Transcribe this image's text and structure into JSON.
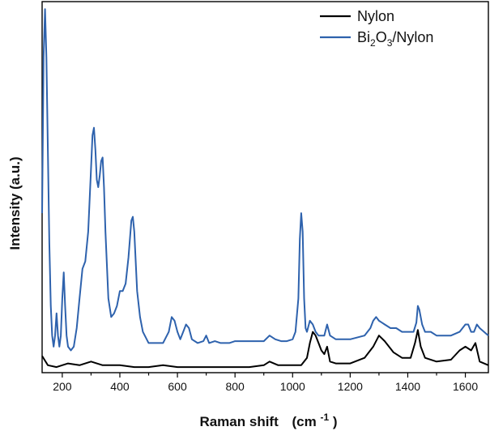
{
  "chart_data": {
    "type": "line",
    "xlabel": "Raman shift",
    "xlabel_unit": "(cm",
    "xlabel_unit_sup": "-1",
    "xlabel_unit_close": ")",
    "ylabel": "Intensity (a.u.)",
    "xlim": [
      130,
      1680
    ],
    "ylim": [
      0,
      1
    ],
    "y_ticks_labeled": false,
    "grid": false,
    "legend_position": "top-right",
    "x_ticks": [
      {
        "value": 200,
        "label": "200"
      },
      {
        "value": 400,
        "label": "400"
      },
      {
        "value": 600,
        "label": "600"
      },
      {
        "value": 800,
        "label": "800"
      },
      {
        "value": 1000,
        "label": "1000"
      },
      {
        "value": 1200,
        "label": "1200"
      },
      {
        "value": 1400,
        "label": "1400"
      },
      {
        "value": 1600,
        "label": "1600"
      }
    ],
    "series": [
      {
        "name": "Nylon",
        "legend": {
          "main": "Nylon"
        },
        "color": "#000000",
        "x": [
          130,
          150,
          180,
          220,
          260,
          300,
          340,
          400,
          450,
          500,
          550,
          600,
          650,
          700,
          750,
          800,
          850,
          900,
          920,
          950,
          1000,
          1030,
          1050,
          1060,
          1070,
          1080,
          1090,
          1100,
          1110,
          1120,
          1130,
          1150,
          1200,
          1250,
          1280,
          1300,
          1320,
          1350,
          1380,
          1410,
          1425,
          1435,
          1445,
          1460,
          1500,
          1550,
          1580,
          1600,
          1620,
          1635,
          1650,
          1680
        ],
        "y": [
          0.045,
          0.02,
          0.015,
          0.025,
          0.02,
          0.03,
          0.02,
          0.02,
          0.015,
          0.015,
          0.02,
          0.015,
          0.015,
          0.015,
          0.015,
          0.015,
          0.015,
          0.02,
          0.03,
          0.02,
          0.02,
          0.02,
          0.04,
          0.08,
          0.11,
          0.1,
          0.08,
          0.06,
          0.05,
          0.07,
          0.03,
          0.025,
          0.025,
          0.04,
          0.07,
          0.1,
          0.085,
          0.055,
          0.04,
          0.04,
          0.08,
          0.115,
          0.07,
          0.04,
          0.03,
          0.035,
          0.06,
          0.07,
          0.06,
          0.08,
          0.03,
          0.02
        ]
      },
      {
        "name": "Bi2O3/Nylon",
        "legend": {
          "main": "Bi",
          "sub1": "2",
          "mid": "O",
          "sub2": "3",
          "tail": "/Nylon"
        },
        "color": "#2e62ad",
        "x": [
          130,
          135,
          140,
          145,
          150,
          155,
          160,
          165,
          170,
          175,
          180,
          185,
          190,
          195,
          200,
          205,
          210,
          215,
          220,
          230,
          240,
          250,
          260,
          270,
          280,
          290,
          300,
          305,
          310,
          315,
          320,
          325,
          330,
          335,
          340,
          345,
          350,
          360,
          370,
          380,
          390,
          400,
          410,
          420,
          430,
          440,
          445,
          450,
          460,
          470,
          480,
          500,
          520,
          550,
          570,
          580,
          590,
          600,
          610,
          620,
          630,
          640,
          650,
          670,
          690,
          700,
          710,
          730,
          750,
          780,
          800,
          850,
          900,
          920,
          940,
          960,
          980,
          1000,
          1010,
          1020,
          1025,
          1030,
          1035,
          1040,
          1045,
          1050,
          1060,
          1070,
          1080,
          1090,
          1100,
          1110,
          1120,
          1130,
          1150,
          1200,
          1250,
          1270,
          1280,
          1290,
          1300,
          1310,
          1320,
          1340,
          1360,
          1380,
          1400,
          1420,
          1430,
          1435,
          1440,
          1450,
          1460,
          1480,
          1500,
          1550,
          1580,
          1600,
          1610,
          1620,
          1630,
          1640,
          1650,
          1680
        ],
        "y": [
          0.43,
          0.85,
          0.98,
          0.85,
          0.6,
          0.35,
          0.18,
          0.1,
          0.07,
          0.1,
          0.16,
          0.1,
          0.07,
          0.1,
          0.2,
          0.27,
          0.18,
          0.1,
          0.07,
          0.06,
          0.07,
          0.12,
          0.2,
          0.28,
          0.3,
          0.38,
          0.55,
          0.64,
          0.66,
          0.6,
          0.52,
          0.5,
          0.53,
          0.57,
          0.58,
          0.5,
          0.38,
          0.2,
          0.15,
          0.16,
          0.18,
          0.22,
          0.22,
          0.24,
          0.31,
          0.41,
          0.42,
          0.38,
          0.22,
          0.15,
          0.11,
          0.08,
          0.08,
          0.08,
          0.11,
          0.15,
          0.14,
          0.11,
          0.09,
          0.11,
          0.13,
          0.12,
          0.09,
          0.08,
          0.085,
          0.1,
          0.08,
          0.085,
          0.08,
          0.08,
          0.085,
          0.085,
          0.085,
          0.1,
          0.09,
          0.085,
          0.085,
          0.09,
          0.11,
          0.2,
          0.36,
          0.43,
          0.38,
          0.2,
          0.12,
          0.11,
          0.14,
          0.13,
          0.11,
          0.1,
          0.1,
          0.1,
          0.13,
          0.1,
          0.09,
          0.09,
          0.1,
          0.12,
          0.14,
          0.15,
          0.14,
          0.135,
          0.13,
          0.12,
          0.12,
          0.11,
          0.11,
          0.11,
          0.135,
          0.18,
          0.17,
          0.13,
          0.11,
          0.11,
          0.1,
          0.1,
          0.11,
          0.13,
          0.13,
          0.11,
          0.11,
          0.13,
          0.12,
          0.1
        ]
      }
    ]
  }
}
